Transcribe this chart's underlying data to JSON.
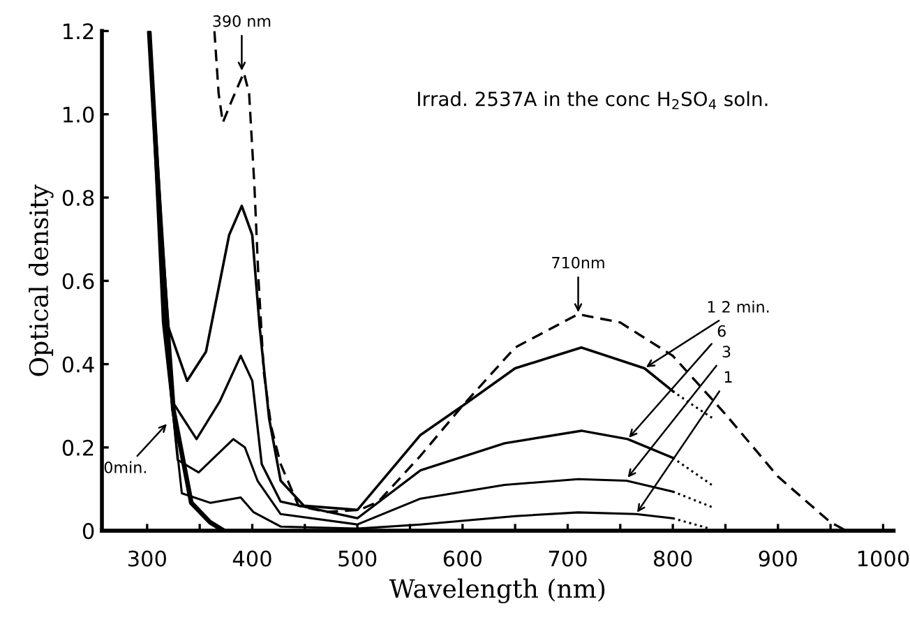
{
  "chart_data": {
    "type": "line",
    "xlabel": "Wavelength (nm)",
    "ylabel": "Optical density",
    "xlim": [
      257,
      1010
    ],
    "ylim": [
      0,
      1.2
    ],
    "xticks": [
      300,
      {
        "value": 350,
        "label": null
      },
      400,
      {
        "value": 450,
        "label": null
      },
      500,
      {
        "value": 550,
        "label": null
      },
      600,
      {
        "value": 650,
        "label": null
      },
      700,
      {
        "value": 750,
        "label": null
      },
      800,
      {
        "value": 850,
        "label": null
      },
      900,
      {
        "value": 950,
        "label": null
      },
      1000
    ],
    "yticks": [
      {
        "value": 0,
        "label": "0"
      },
      0.2,
      0.4,
      0.6,
      0.8,
      {
        "value": 1.0,
        "label": "1.0"
      },
      1.2
    ],
    "grid": false,
    "marker": "none",
    "series": [
      {
        "color": "#000000",
        "line_style": "solid",
        "x": [
          302,
          313,
          325,
          342,
          360,
          373
        ],
        "values": [
          1.2,
          0.71,
          0.29,
          0.067,
          0.02,
          0
        ]
      },
      {
        "color": "#000000",
        "line_style": "solid",
        "x": [
          302,
          315,
          333,
          360,
          389,
          401,
          427,
          500,
          560,
          650,
          710,
          765,
          800
        ],
        "values": [
          1.2,
          0.5,
          0.09,
          0.067,
          0.08,
          0.045,
          0.01,
          0.005,
          0.015,
          0.035,
          0.044,
          0.04,
          0.03
        ]
      },
      {
        "color": "#000000",
        "line_style": "dotted",
        "x": [
          800,
          835
        ],
        "values": [
          0.03,
          0.005
        ]
      },
      {
        "color": "#000000",
        "line_style": "solid",
        "x": [
          302,
          318,
          329,
          349,
          382,
          393,
          405,
          427,
          500,
          560,
          640,
          710,
          756,
          800
        ],
        "values": [
          1.2,
          0.45,
          0.17,
          0.14,
          0.22,
          0.2,
          0.12,
          0.04,
          0.015,
          0.077,
          0.11,
          0.124,
          0.12,
          0.094
        ]
      },
      {
        "color": "#000000",
        "line_style": "dotted",
        "x": [
          800,
          837
        ],
        "values": [
          0.094,
          0.057
        ]
      },
      {
        "color": "#000000",
        "line_style": "solid",
        "x": [
          302,
          315,
          324,
          347,
          369,
          389,
          400,
          409,
          427,
          500,
          560,
          640,
          713,
          757,
          800
        ],
        "values": [
          1.2,
          0.55,
          0.31,
          0.22,
          0.31,
          0.42,
          0.36,
          0.16,
          0.07,
          0.03,
          0.145,
          0.21,
          0.24,
          0.22,
          0.175
        ]
      },
      {
        "color": "#000000",
        "line_style": "dotted",
        "x": [
          800,
          837
        ],
        "values": [
          0.175,
          0.11
        ]
      },
      {
        "color": "#000000",
        "line_style": "solid",
        "x": [
          302,
          320,
          338,
          356,
          378,
          390,
          400,
          407,
          416,
          427,
          449,
          500,
          560,
          600,
          650,
          713,
          773,
          800
        ],
        "values": [
          1.2,
          0.49,
          0.36,
          0.43,
          0.71,
          0.78,
          0.71,
          0.49,
          0.27,
          0.12,
          0.06,
          0.05,
          0.23,
          0.3,
          0.39,
          0.44,
          0.39,
          0.335
        ]
      },
      {
        "color": "#000000",
        "line_style": "dotted",
        "x": [
          800,
          820,
          838
        ],
        "values": [
          0.335,
          0.3,
          0.27
        ]
      },
      {
        "color": "#000000",
        "line_style": "dashed",
        "x": [
          364,
          368,
          372,
          380,
          392,
          397,
          402,
          406,
          411,
          418,
          427,
          444,
          470,
          502,
          520,
          560,
          600,
          650,
          710,
          750,
          800,
          850,
          900,
          950,
          965
        ],
        "values": [
          1.2,
          1.05,
          0.98,
          1.03,
          1.1,
          1.05,
          0.83,
          0.6,
          0.38,
          0.25,
          0.16,
          0.06,
          0.045,
          0.05,
          0.07,
          0.18,
          0.3,
          0.44,
          0.52,
          0.5,
          0.42,
          0.28,
          0.13,
          0.02,
          0
        ]
      }
    ],
    "annotations": [
      "Irrad. 2537A in the conc H$_{2}$SO$_{4}$ soln.",
      {
        "text": "390 nm",
        "x": 390,
        "y": 1.1
      },
      {
        "text": "710nm",
        "x": 710,
        "y": 0.52
      },
      {
        "text": "0min.",
        "x": 320,
        "y": 0.26
      },
      {
        "text": "1 2 min.",
        "x": 773,
        "y": 0.39
      },
      {
        "text": "6",
        "x": 757,
        "y": 0.22
      },
      {
        "text": "3",
        "x": 756,
        "y": 0.124
      },
      {
        "text": "1",
        "x": 765,
        "y": 0.04
      }
    ]
  }
}
